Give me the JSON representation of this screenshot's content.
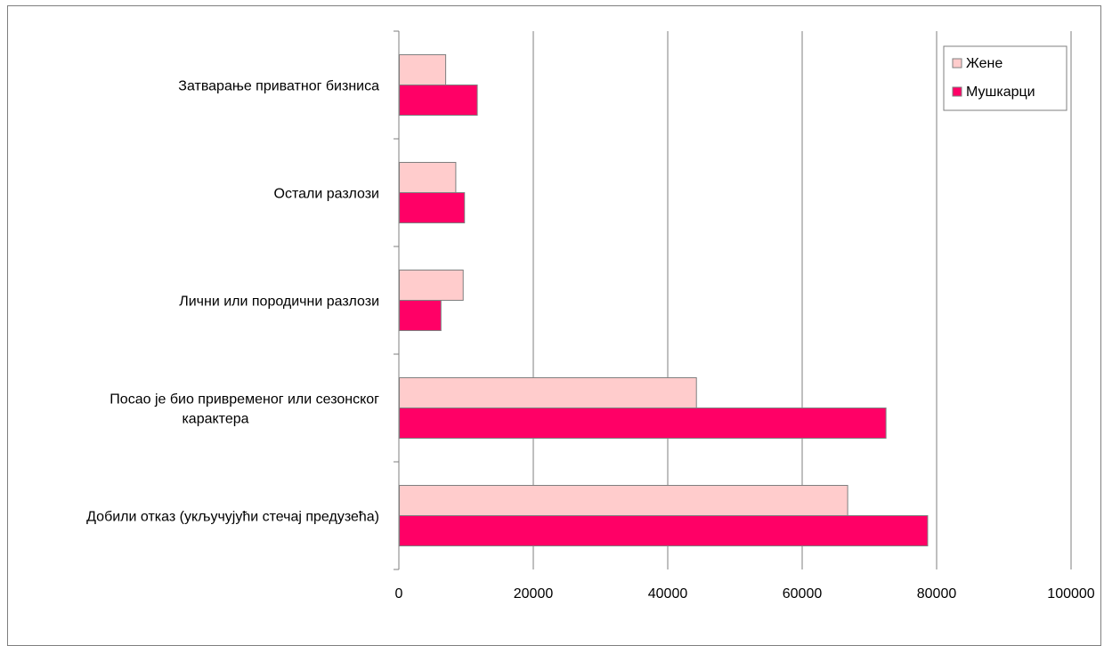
{
  "chart_data": {
    "type": "bar",
    "orientation": "horizontal",
    "categories": [
      "Затварање приватног бизниса",
      "Остали разлози",
      "Лични или породични разлози",
      "Посао је био привременог или сезонског карактера",
      "Добили отказ (укључујући стечај предузећа)"
    ],
    "category_lines": [
      [
        "Затварање приватног бизниса"
      ],
      [
        "Остали разлози"
      ],
      [
        "Лични или породични разлози"
      ],
      [
        "Посао је био привременог или сезонског",
        "карактера"
      ],
      [
        "Добили отказ (укључујући стечај предузећа)"
      ]
    ],
    "series": [
      {
        "name": "Жене",
        "color": "#ffcccc",
        "values": [
          6900,
          8400,
          9500,
          44200,
          66700
        ]
      },
      {
        "name": "Мушкарци",
        "color": "#ff0066",
        "values": [
          11600,
          9700,
          6200,
          72400,
          78600
        ]
      }
    ],
    "xlim": [
      0,
      100000
    ],
    "xticks": [
      "0",
      "20000",
      "40000",
      "60000",
      "80000",
      "100000"
    ],
    "xtick_values": [
      0,
      20000,
      40000,
      60000,
      80000,
      100000
    ],
    "grid": "vertical",
    "legend_position": "top-right",
    "title": "",
    "xlabel": "",
    "ylabel": ""
  }
}
